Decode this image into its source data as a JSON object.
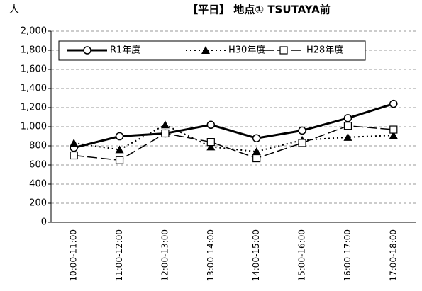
{
  "chart_data": {
    "type": "line",
    "title": "【平日】 地点① TSUTAYA前",
    "y_label": "人",
    "categories": [
      "10:00-11:00",
      "11:00-12:00",
      "12:00-13:00",
      "13:00-14:00",
      "14:00-15:00",
      "15:00-16:00",
      "16:00-17:00",
      "17:00-18:00"
    ],
    "series": [
      {
        "name": "R1年度",
        "color": "#000000",
        "line": "solid",
        "marker": "circle",
        "values": [
          780,
          900,
          930,
          1020,
          880,
          960,
          1090,
          1240
        ]
      },
      {
        "name": "H30年度",
        "color": "#000000",
        "line": "dotted",
        "marker": "triangle",
        "values": [
          830,
          760,
          1020,
          790,
          740,
          860,
          890,
          910
        ]
      },
      {
        "name": "H28年度",
        "color": "#000000",
        "line": "dashed",
        "marker": "square",
        "values": [
          700,
          650,
          930,
          840,
          670,
          830,
          1010,
          970
        ]
      }
    ],
    "ylim": [
      0,
      2000
    ],
    "yticks": [
      0,
      200,
      400,
      600,
      800,
      {
        "value": 1000,
        "label": "1,000"
      },
      {
        "value": 1200,
        "label": "1,200"
      },
      {
        "value": 1400,
        "label": "1,400"
      },
      {
        "value": 1600,
        "label": "1,600"
      },
      {
        "value": 1800,
        "label": "1,800"
      },
      {
        "value": 2000,
        "label": "2,000"
      }
    ],
    "grid": true,
    "legend": "top"
  }
}
